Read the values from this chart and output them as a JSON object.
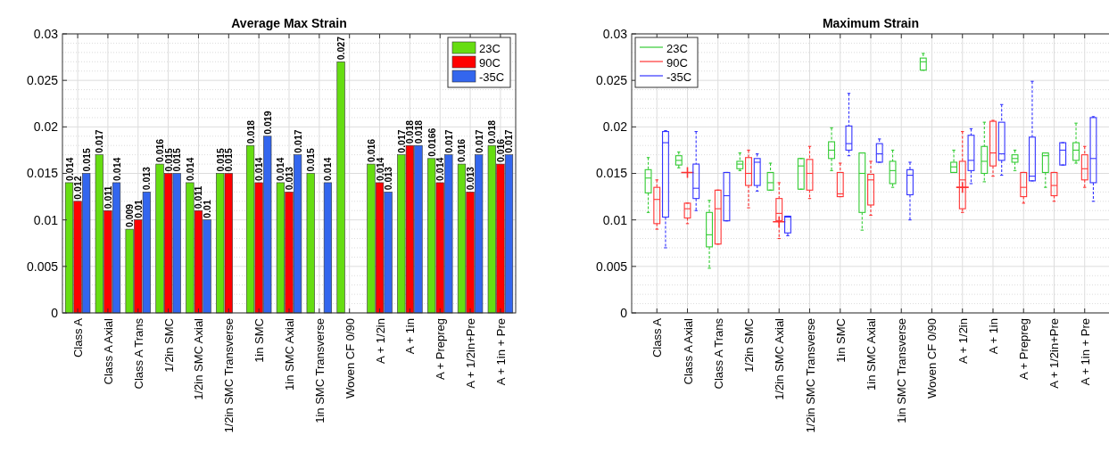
{
  "chart_data": [
    {
      "type": "bar",
      "title": "Average Max Strain",
      "categories": [
        "Class A",
        "Class A Axial",
        "Class A Trans",
        "1/2in SMC",
        "1/2in SMC Axial",
        "1/2in SMC Transverse",
        "1in SMC",
        "1in SMC Axial",
        "1in SMC Transverse",
        "Woven CF 0/90",
        "A + 1/2in",
        "A + 1in",
        "A + Prepreg",
        "A + 1/2in+Pre",
        "A + 1in + Pre"
      ],
      "series": [
        {
          "name": "23C",
          "color": "#66dd11",
          "values": [
            0.014,
            0.017,
            0.009,
            0.016,
            0.014,
            0.015,
            0.018,
            0.014,
            0.015,
            0.027,
            0.016,
            0.017,
            0.0166,
            0.016,
            0.018
          ]
        },
        {
          "name": "90C",
          "color": "#ff0000",
          "values": [
            0.012,
            0.011,
            0.01,
            0.015,
            0.011,
            0.015,
            0.014,
            0.013,
            null,
            null,
            0.014,
            0.018,
            0.014,
            0.013,
            0.016
          ]
        },
        {
          "name": "-35C",
          "color": "#3366ee",
          "values": [
            0.015,
            0.014,
            0.013,
            0.015,
            0.01,
            null,
            0.019,
            0.017,
            0.014,
            null,
            0.013,
            0.018,
            0.017,
            0.017,
            0.017
          ]
        }
      ],
      "ylim": [
        0,
        0.03
      ],
      "yticks": [
        0,
        0.005,
        0.01,
        0.015,
        0.02,
        0.025,
        0.03
      ],
      "grid": true,
      "legend": "top right",
      "data_labels": true
    },
    {
      "type": "box",
      "title": "Maximum Strain",
      "categories": [
        "Class A",
        "Class A Axial",
        "Class A Trans",
        "1/2in SMC",
        "1/2in SMC Axial",
        "1/2in SMC Transverse",
        "1in SMC",
        "1in SMC Axial",
        "1in SMC Transverse",
        "Woven CF 0/90",
        "A + 1/2in",
        "A + 1in",
        "A + Prepreg",
        "A + 1/2in+Pre",
        "A + 1in + Pre"
      ],
      "series": [
        {
          "name": "23C",
          "color": "#33cc33",
          "boxes": [
            {
              "low": 0.0108,
              "q1": 0.0129,
              "median": 0.0145,
              "q3": 0.0154,
              "high": 0.0167
            },
            {
              "low": 0.0156,
              "q1": 0.0159,
              "median": 0.0164,
              "q3": 0.0169,
              "high": 0.0173
            },
            {
              "low": 0.0048,
              "q1": 0.0071,
              "median": 0.0084,
              "q3": 0.0108,
              "high": 0.0121
            },
            {
              "low": 0.0153,
              "q1": 0.0155,
              "median": 0.016,
              "q3": 0.0163,
              "high": 0.0172
            },
            {
              "low": 0.0132,
              "q1": 0.0132,
              "median": 0.014,
              "q3": 0.0151,
              "high": 0.0161
            },
            {
              "low": 0.0133,
              "q1": 0.0133,
              "median": 0.0158,
              "q3": 0.0166,
              "high": 0.0166
            },
            {
              "low": 0.0153,
              "q1": 0.0166,
              "median": 0.0175,
              "q3": 0.0184,
              "high": 0.0199
            },
            {
              "low": 0.0089,
              "q1": 0.0108,
              "median": 0.015,
              "q3": 0.0172,
              "high": 0.0172
            },
            {
              "low": 0.0135,
              "q1": 0.0139,
              "median": 0.0153,
              "q3": 0.0163,
              "high": 0.0175
            },
            {
              "low": 0.0261,
              "q1": 0.0261,
              "median": 0.027,
              "q3": 0.0274,
              "high": 0.0279
            },
            {
              "low": 0.0151,
              "q1": 0.0151,
              "median": 0.0157,
              "q3": 0.0162,
              "high": 0.0175
            },
            {
              "low": 0.0141,
              "q1": 0.015,
              "median": 0.0163,
              "q3": 0.0179,
              "high": 0.0205
            },
            {
              "low": 0.0153,
              "q1": 0.0162,
              "median": 0.0166,
              "q3": 0.017,
              "high": 0.0175
            },
            {
              "low": 0.0135,
              "q1": 0.0151,
              "median": 0.0169,
              "q3": 0.0172,
              "high": 0.0172
            },
            {
              "low": 0.0161,
              "q1": 0.0164,
              "median": 0.0175,
              "q3": 0.0183,
              "high": 0.0204
            }
          ]
        },
        {
          "name": "90C",
          "color": "#ff3333",
          "boxes": [
            {
              "low": 0.009,
              "q1": 0.0096,
              "median": 0.0122,
              "q3": 0.0135,
              "high": 0.0143
            },
            {
              "low": 0.0096,
              "q1": 0.0102,
              "median": 0.0112,
              "q3": 0.0118,
              "high": 0.0118,
              "outliers": [
                0.0151
              ]
            },
            {
              "low": 0.0074,
              "q1": 0.0074,
              "median": 0.0112,
              "q3": 0.0132,
              "high": 0.0132
            },
            {
              "low": 0.0113,
              "q1": 0.0137,
              "median": 0.015,
              "q3": 0.0167,
              "high": 0.0175
            },
            {
              "low": 0.008,
              "q1": 0.0099,
              "median": 0.0107,
              "q3": 0.0123,
              "high": 0.014,
              "outliers": [
                0.0098
              ]
            },
            {
              "low": 0.0123,
              "q1": 0.0132,
              "median": 0.015,
              "q3": 0.0165,
              "high": 0.0179
            },
            {
              "low": 0.0125,
              "q1": 0.0125,
              "median": 0.0128,
              "q3": 0.0151,
              "high": 0.0161
            },
            {
              "low": 0.0105,
              "q1": 0.0116,
              "median": 0.0143,
              "q3": 0.0149,
              "high": 0.0163
            },
            null,
            null,
            {
              "low": 0.0108,
              "q1": 0.0112,
              "median": 0.0143,
              "q3": 0.0163,
              "high": 0.0195,
              "outliers": [
                0.0135
              ]
            },
            {
              "low": 0.0147,
              "q1": 0.0158,
              "median": 0.0172,
              "q3": 0.0206,
              "high": 0.0207
            },
            {
              "low": 0.0118,
              "q1": 0.0125,
              "median": 0.0135,
              "q3": 0.0151,
              "high": 0.0151
            },
            {
              "low": 0.012,
              "q1": 0.0126,
              "median": 0.0137,
              "q3": 0.0151,
              "high": 0.0151
            },
            {
              "low": 0.0135,
              "q1": 0.0143,
              "median": 0.0155,
              "q3": 0.017,
              "high": 0.0179
            }
          ]
        },
        {
          "name": "-35C",
          "color": "#3333ff",
          "boxes": [
            {
              "low": 0.007,
              "q1": 0.0103,
              "median": 0.0183,
              "q3": 0.0195,
              "high": 0.0196
            },
            {
              "low": 0.011,
              "q1": 0.0123,
              "median": 0.0134,
              "q3": 0.016,
              "high": 0.0195
            },
            {
              "low": 0.0099,
              "q1": 0.0099,
              "median": 0.0126,
              "q3": 0.0151,
              "high": 0.0151
            },
            {
              "low": 0.0131,
              "q1": 0.0137,
              "median": 0.0162,
              "q3": 0.0166,
              "high": 0.0171
            },
            {
              "low": 0.0083,
              "q1": 0.0086,
              "median": 0.0103,
              "q3": 0.0104,
              "high": 0.0104
            },
            null,
            {
              "low": 0.0169,
              "q1": 0.0175,
              "median": 0.0182,
              "q3": 0.0201,
              "high": 0.0236
            },
            {
              "low": 0.0162,
              "q1": 0.0162,
              "median": 0.0171,
              "q3": 0.0182,
              "high": 0.0187
            },
            {
              "low": 0.01,
              "q1": 0.0127,
              "median": 0.0148,
              "q3": 0.0154,
              "high": 0.0162
            },
            null,
            {
              "low": 0.0139,
              "q1": 0.0153,
              "median": 0.0164,
              "q3": 0.0191,
              "high": 0.0198
            },
            {
              "low": 0.0148,
              "q1": 0.0164,
              "median": 0.0171,
              "q3": 0.0205,
              "high": 0.0224
            },
            {
              "low": 0.0142,
              "q1": 0.0142,
              "median": 0.0147,
              "q3": 0.0189,
              "high": 0.0249
            },
            {
              "low": 0.0159,
              "q1": 0.0159,
              "median": 0.0175,
              "q3": 0.0183,
              "high": 0.0183
            },
            {
              "low": 0.012,
              "q1": 0.014,
              "median": 0.0166,
              "q3": 0.021,
              "high": 0.0211
            }
          ]
        }
      ],
      "ylim": [
        0,
        0.03
      ],
      "yticks": [
        0,
        0.005,
        0.01,
        0.015,
        0.02,
        0.025,
        0.03
      ],
      "grid": true,
      "legend": "top left"
    }
  ]
}
